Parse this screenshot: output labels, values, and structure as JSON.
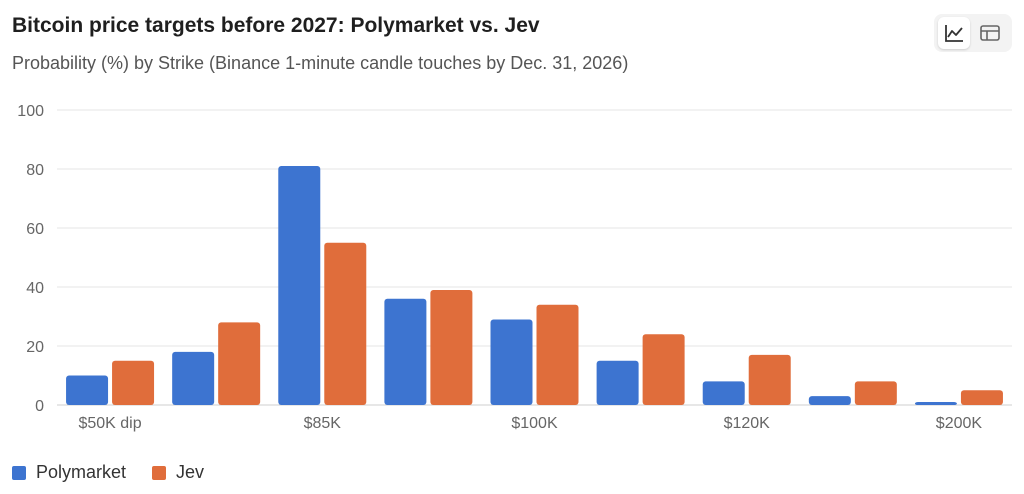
{
  "header": {
    "title": "Bitcoin price targets before 2027: Polymarket vs. Jev",
    "subtitle": "Probability (%) by Strike (Binance 1-minute candle touches by Dec. 31, 2026)"
  },
  "toolbar": {
    "chart_view_icon": "line-chart-icon",
    "table_view_icon": "table-icon"
  },
  "colors": {
    "polymarket": "#3d74d0",
    "jev": "#e06d3b",
    "grid": "#e6e6e6"
  },
  "chart_data": {
    "type": "bar",
    "title": "Bitcoin price targets before 2027: Polymarket vs. Jev",
    "subtitle": "Probability (%) by Strike (Binance 1-minute candle touches by Dec. 31, 2026)",
    "categories": [
      "$50K dip",
      "",
      "$85K",
      "",
      "$100K",
      "",
      "$120K",
      "",
      "$200K"
    ],
    "series": [
      {
        "name": "Polymarket",
        "values": [
          10,
          18,
          81,
          36,
          29,
          15,
          8,
          3,
          1
        ]
      },
      {
        "name": "Jev",
        "values": [
          15,
          28,
          55,
          39,
          34,
          24,
          17,
          8,
          5
        ]
      }
    ],
    "ylim": [
      0,
      100
    ],
    "yticks": [
      0,
      20,
      40,
      60,
      80,
      100
    ],
    "xlabel": "",
    "ylabel": "",
    "grid": true,
    "legend": "bottom-left"
  }
}
